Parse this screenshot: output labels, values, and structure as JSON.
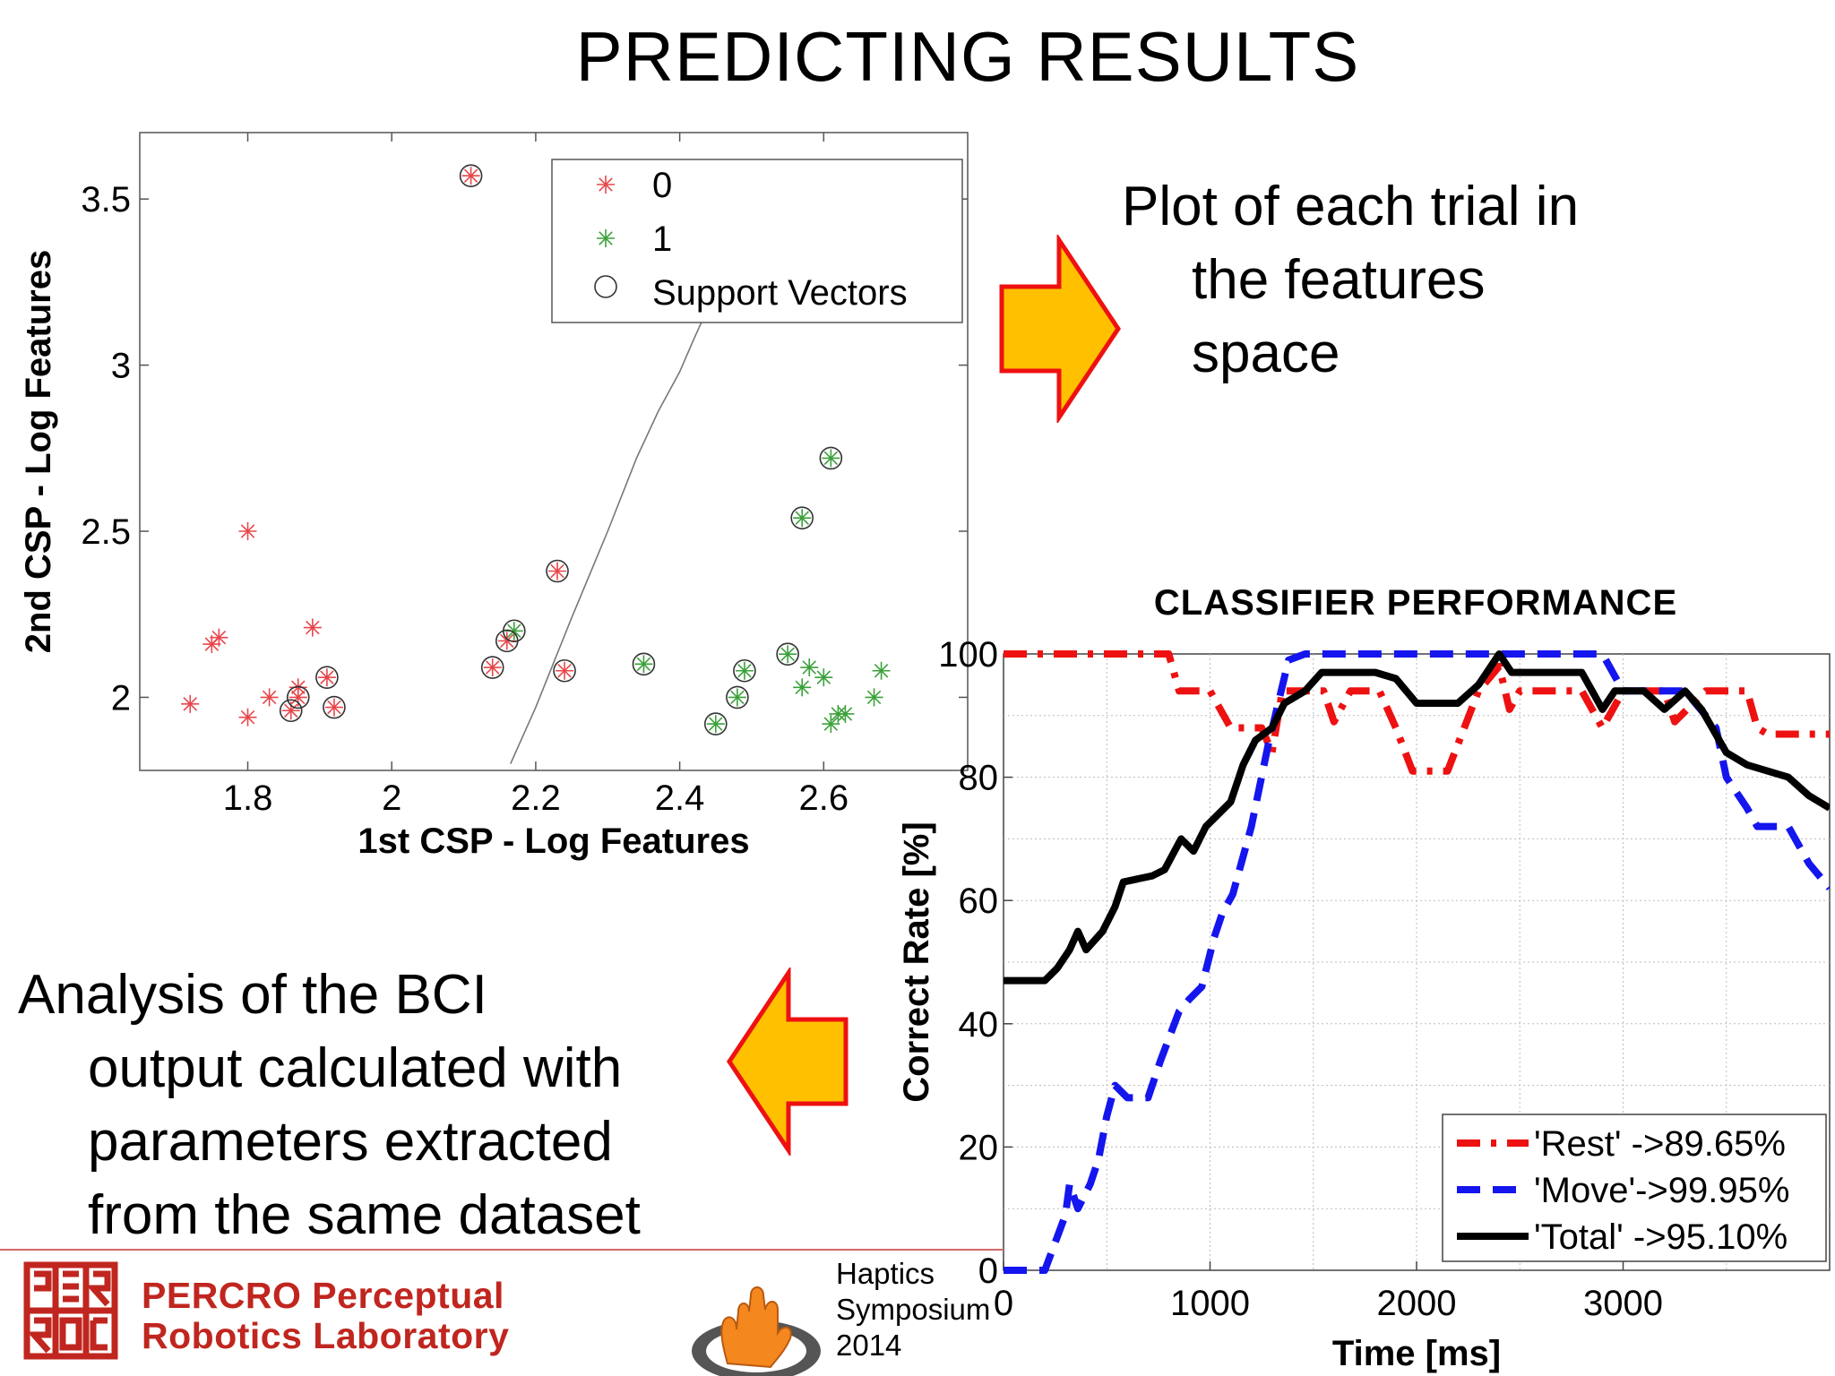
{
  "slide": {
    "title": "PREDICTING RESULTS",
    "bullet_right": [
      "Plot of each trial in",
      "the features",
      "space"
    ],
    "bullet_left": [
      "Analysis of the BCI",
      "output calculated with",
      "parameters extracted",
      "from the same dataset"
    ],
    "logo_text": [
      "PERCRO Perceptual",
      "Robotics Laboratory"
    ],
    "event_text": [
      "Haptics",
      "Symposium",
      "2014"
    ],
    "colors": {
      "arrow_fill": "#ffc000",
      "arrow_stroke": "#ee1111",
      "logo_red": "#c0261f"
    }
  },
  "chart_data": [
    {
      "type": "scatter",
      "title": "",
      "xlabel": "1st CSP - Log Features",
      "ylabel": "2nd CSP - Log Features",
      "xlim": [
        1.65,
        2.8
      ],
      "ylim": [
        1.78,
        3.7
      ],
      "xticks": [
        1.8,
        2.0,
        2.2,
        2.4,
        2.6
      ],
      "xtick_labels": [
        "1.8",
        "2",
        "2.2",
        "2.4",
        "2.6"
      ],
      "yticks": [
        2.0,
        2.5,
        3.0,
        3.5
      ],
      "ytick_labels": [
        "2",
        "2.5",
        "3",
        "3.5"
      ],
      "legend": {
        "position": "top-right",
        "entries": [
          "0",
          "1",
          "Support Vectors"
        ]
      },
      "series": [
        {
          "name": "0",
          "color": "#e8464a",
          "points": [
            [
              1.72,
              1.98
            ],
            [
              1.75,
              2.16
            ],
            [
              1.76,
              2.18
            ],
            [
              1.8,
              2.5
            ],
            [
              1.8,
              1.94
            ],
            [
              1.83,
              2.0
            ],
            [
              1.86,
              1.96
            ],
            [
              1.87,
              2.0
            ],
            [
              1.87,
              2.03
            ],
            [
              1.89,
              2.21
            ],
            [
              1.91,
              2.06
            ],
            [
              1.92,
              1.97
            ],
            [
              2.11,
              3.57
            ],
            [
              2.14,
              2.09
            ],
            [
              2.16,
              2.17
            ],
            [
              2.23,
              2.38
            ],
            [
              2.24,
              2.08
            ]
          ]
        },
        {
          "name": "1",
          "color": "#3aa13a",
          "points": [
            [
              2.17,
              2.2
            ],
            [
              2.35,
              2.1
            ],
            [
              2.45,
              1.92
            ],
            [
              2.48,
              2.0
            ],
            [
              2.49,
              2.08
            ],
            [
              2.55,
              2.13
            ],
            [
              2.57,
              2.54
            ],
            [
              2.57,
              2.03
            ],
            [
              2.58,
              2.09
            ],
            [
              2.6,
              2.06
            ],
            [
              2.61,
              2.72
            ],
            [
              2.61,
              1.92
            ],
            [
              2.62,
              1.95
            ],
            [
              2.63,
              1.95
            ],
            [
              2.67,
              2.0
            ],
            [
              2.68,
              2.08
            ]
          ]
        }
      ],
      "support_vectors": [
        [
          1.86,
          1.96
        ],
        [
          1.87,
          2.0
        ],
        [
          1.91,
          2.06
        ],
        [
          1.92,
          1.97
        ],
        [
          2.11,
          3.57
        ],
        [
          2.14,
          2.09
        ],
        [
          2.16,
          2.17
        ],
        [
          2.17,
          2.2
        ],
        [
          2.23,
          2.38
        ],
        [
          2.24,
          2.08
        ],
        [
          2.35,
          2.1
        ],
        [
          2.45,
          1.92
        ],
        [
          2.48,
          2.0
        ],
        [
          2.49,
          2.08
        ],
        [
          2.55,
          2.13
        ],
        [
          2.57,
          2.54
        ],
        [
          2.61,
          2.72
        ]
      ],
      "decision_boundary": [
        [
          2.165,
          1.8
        ],
        [
          2.2,
          1.97
        ],
        [
          2.25,
          2.24
        ],
        [
          2.3,
          2.5
        ],
        [
          2.34,
          2.72
        ],
        [
          2.37,
          2.86
        ],
        [
          2.4,
          2.98
        ],
        [
          2.42,
          3.08
        ],
        [
          2.445,
          3.2
        ]
      ],
      "grid": false
    },
    {
      "type": "line",
      "title": "CLASSIFIER PERFORMANCE",
      "xlabel": "Time [ms]",
      "ylabel": "Correct Rate [%]",
      "xlim": [
        0,
        4000
      ],
      "ylim": [
        0,
        100
      ],
      "xticks": [
        0,
        1000,
        2000,
        3000
      ],
      "xtick_labels": [
        "0",
        "1000",
        "2000",
        "3000"
      ],
      "yticks": [
        0,
        20,
        40,
        60,
        80,
        100
      ],
      "ytick_labels": [
        "0",
        "20",
        "40",
        "60",
        "80",
        "100"
      ],
      "grid": true,
      "legend": {
        "position": "bottom-right",
        "entries": [
          "'Rest' ->89.65%",
          "'Move'->99.95%",
          "'Total' ->95.10%"
        ]
      },
      "series": [
        {
          "name": "'Rest' ->89.65%",
          "color": "#ee1111",
          "dash": "dashdot",
          "points": [
            [
              0,
              100
            ],
            [
              800,
              100
            ],
            [
              850,
              94
            ],
            [
              1000,
              94
            ],
            [
              1100,
              88
            ],
            [
              1250,
              88
            ],
            [
              1300,
              84
            ],
            [
              1350,
              94
            ],
            [
              1550,
              94
            ],
            [
              1600,
              89
            ],
            [
              1680,
              94
            ],
            [
              1820,
              94
            ],
            [
              1900,
              88
            ],
            [
              1980,
              81
            ],
            [
              2150,
              81
            ],
            [
              2300,
              94
            ],
            [
              2400,
              98
            ],
            [
              2450,
              91
            ],
            [
              2500,
              94
            ],
            [
              2800,
              94
            ],
            [
              2900,
              88
            ],
            [
              3000,
              94
            ],
            [
              3200,
              94
            ],
            [
              3250,
              89
            ],
            [
              3400,
              94
            ],
            [
              3500,
              94
            ],
            [
              3600,
              94
            ],
            [
              3650,
              88
            ],
            [
              3700,
              87
            ],
            [
              4000,
              87
            ]
          ]
        },
        {
          "name": "'Move'->99.95%",
          "color": "#1515ee",
          "dash": "dashed",
          "points": [
            [
              0,
              0
            ],
            [
              100,
              0
            ],
            [
              200,
              0
            ],
            [
              300,
              9
            ],
            [
              320,
              14
            ],
            [
              360,
              10
            ],
            [
              420,
              14
            ],
            [
              460,
              18
            ],
            [
              500,
              25
            ],
            [
              540,
              30
            ],
            [
              600,
              28
            ],
            [
              700,
              28
            ],
            [
              760,
              34
            ],
            [
              850,
              42
            ],
            [
              900,
              44
            ],
            [
              960,
              46
            ],
            [
              1020,
              54
            ],
            [
              1060,
              58
            ],
            [
              1110,
              61
            ],
            [
              1200,
              72
            ],
            [
              1280,
              85
            ],
            [
              1380,
              99
            ],
            [
              1460,
              100
            ],
            [
              2900,
              100
            ],
            [
              3000,
              94
            ],
            [
              3300,
              94
            ],
            [
              3450,
              88
            ],
            [
              3500,
              80
            ],
            [
              3600,
              75
            ],
            [
              3650,
              72
            ],
            [
              3800,
              72
            ],
            [
              3900,
              66
            ],
            [
              4000,
              62
            ]
          ]
        },
        {
          "name": "'Total' ->95.10%",
          "color": "#000000",
          "dash": "solid",
          "points": [
            [
              0,
              47
            ],
            [
              200,
              47
            ],
            [
              260,
              49
            ],
            [
              320,
              52
            ],
            [
              360,
              55
            ],
            [
              400,
              52
            ],
            [
              480,
              55
            ],
            [
              540,
              59
            ],
            [
              580,
              63
            ],
            [
              720,
              64
            ],
            [
              780,
              65
            ],
            [
              860,
              70
            ],
            [
              920,
              68
            ],
            [
              980,
              72
            ],
            [
              1100,
              76
            ],
            [
              1160,
              82
            ],
            [
              1220,
              86
            ],
            [
              1300,
              88
            ],
            [
              1360,
              92
            ],
            [
              1460,
              94
            ],
            [
              1540,
              97
            ],
            [
              1800,
              97
            ],
            [
              1900,
              96
            ],
            [
              2000,
              92
            ],
            [
              2200,
              92
            ],
            [
              2300,
              95
            ],
            [
              2400,
              100
            ],
            [
              2460,
              97
            ],
            [
              2560,
              97
            ],
            [
              2800,
              97
            ],
            [
              2900,
              91
            ],
            [
              2960,
              94
            ],
            [
              3100,
              94
            ],
            [
              3200,
              91
            ],
            [
              3300,
              94
            ],
            [
              3380,
              91
            ],
            [
              3500,
              84
            ],
            [
              3600,
              82
            ],
            [
              3800,
              80
            ],
            [
              3900,
              77
            ],
            [
              4000,
              75
            ]
          ]
        }
      ]
    }
  ]
}
